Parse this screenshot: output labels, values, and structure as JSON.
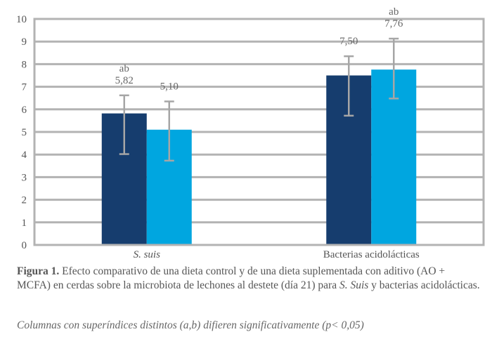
{
  "chart_data": {
    "type": "bar",
    "title": "",
    "xlabel": "",
    "ylabel": "",
    "ylim": [
      0,
      10
    ],
    "yticks": [
      "0",
      "1",
      "2",
      "3",
      "4",
      "5",
      "6",
      "7",
      "8",
      "9",
      "10"
    ],
    "grid": true,
    "legend": "none",
    "categories": [
      {
        "label": "S. suis",
        "italic": true
      },
      {
        "label": "Bacterias acidolácticas",
        "italic": false
      }
    ],
    "series": [
      {
        "name": "Dieta control",
        "color": "#163d6e",
        "values": [
          5.82,
          7.5
        ],
        "value_labels": [
          "5,82",
          "7,50"
        ],
        "error_low": [
          4.02,
          5.72
        ],
        "error_high": [
          6.62,
          8.35
        ],
        "superscripts": [
          "ab",
          ""
        ]
      },
      {
        "name": "Dieta suplementada (AO + MCFA)",
        "color": "#00a6e0",
        "values": [
          5.1,
          7.76
        ],
        "value_labels": [
          "5,10",
          "7,76"
        ],
        "error_low": [
          3.73,
          6.48
        ],
        "error_high": [
          6.35,
          9.13
        ],
        "superscripts": [
          "",
          "ab"
        ]
      }
    ],
    "colors": {
      "grid": "#b3b3b3",
      "error_bar": "#a6a6a6",
      "text": "#555555"
    }
  },
  "caption": {
    "label": "Figura 1.",
    "text_1": " Efecto comparativo de una dieta control y de una dieta suplementada con aditivo (AO + MCFA) en cerdas sobre la microbiota de lechones al destete (día 21) para ",
    "italic_species": "S. Suis",
    "text_2": " y bacterias acidolácticas."
  },
  "note": {
    "text_1": "Columnas con superíndices distintos (a,b) difieren significativamente (",
    "p": "p",
    "text_2": "< 0,05)"
  }
}
